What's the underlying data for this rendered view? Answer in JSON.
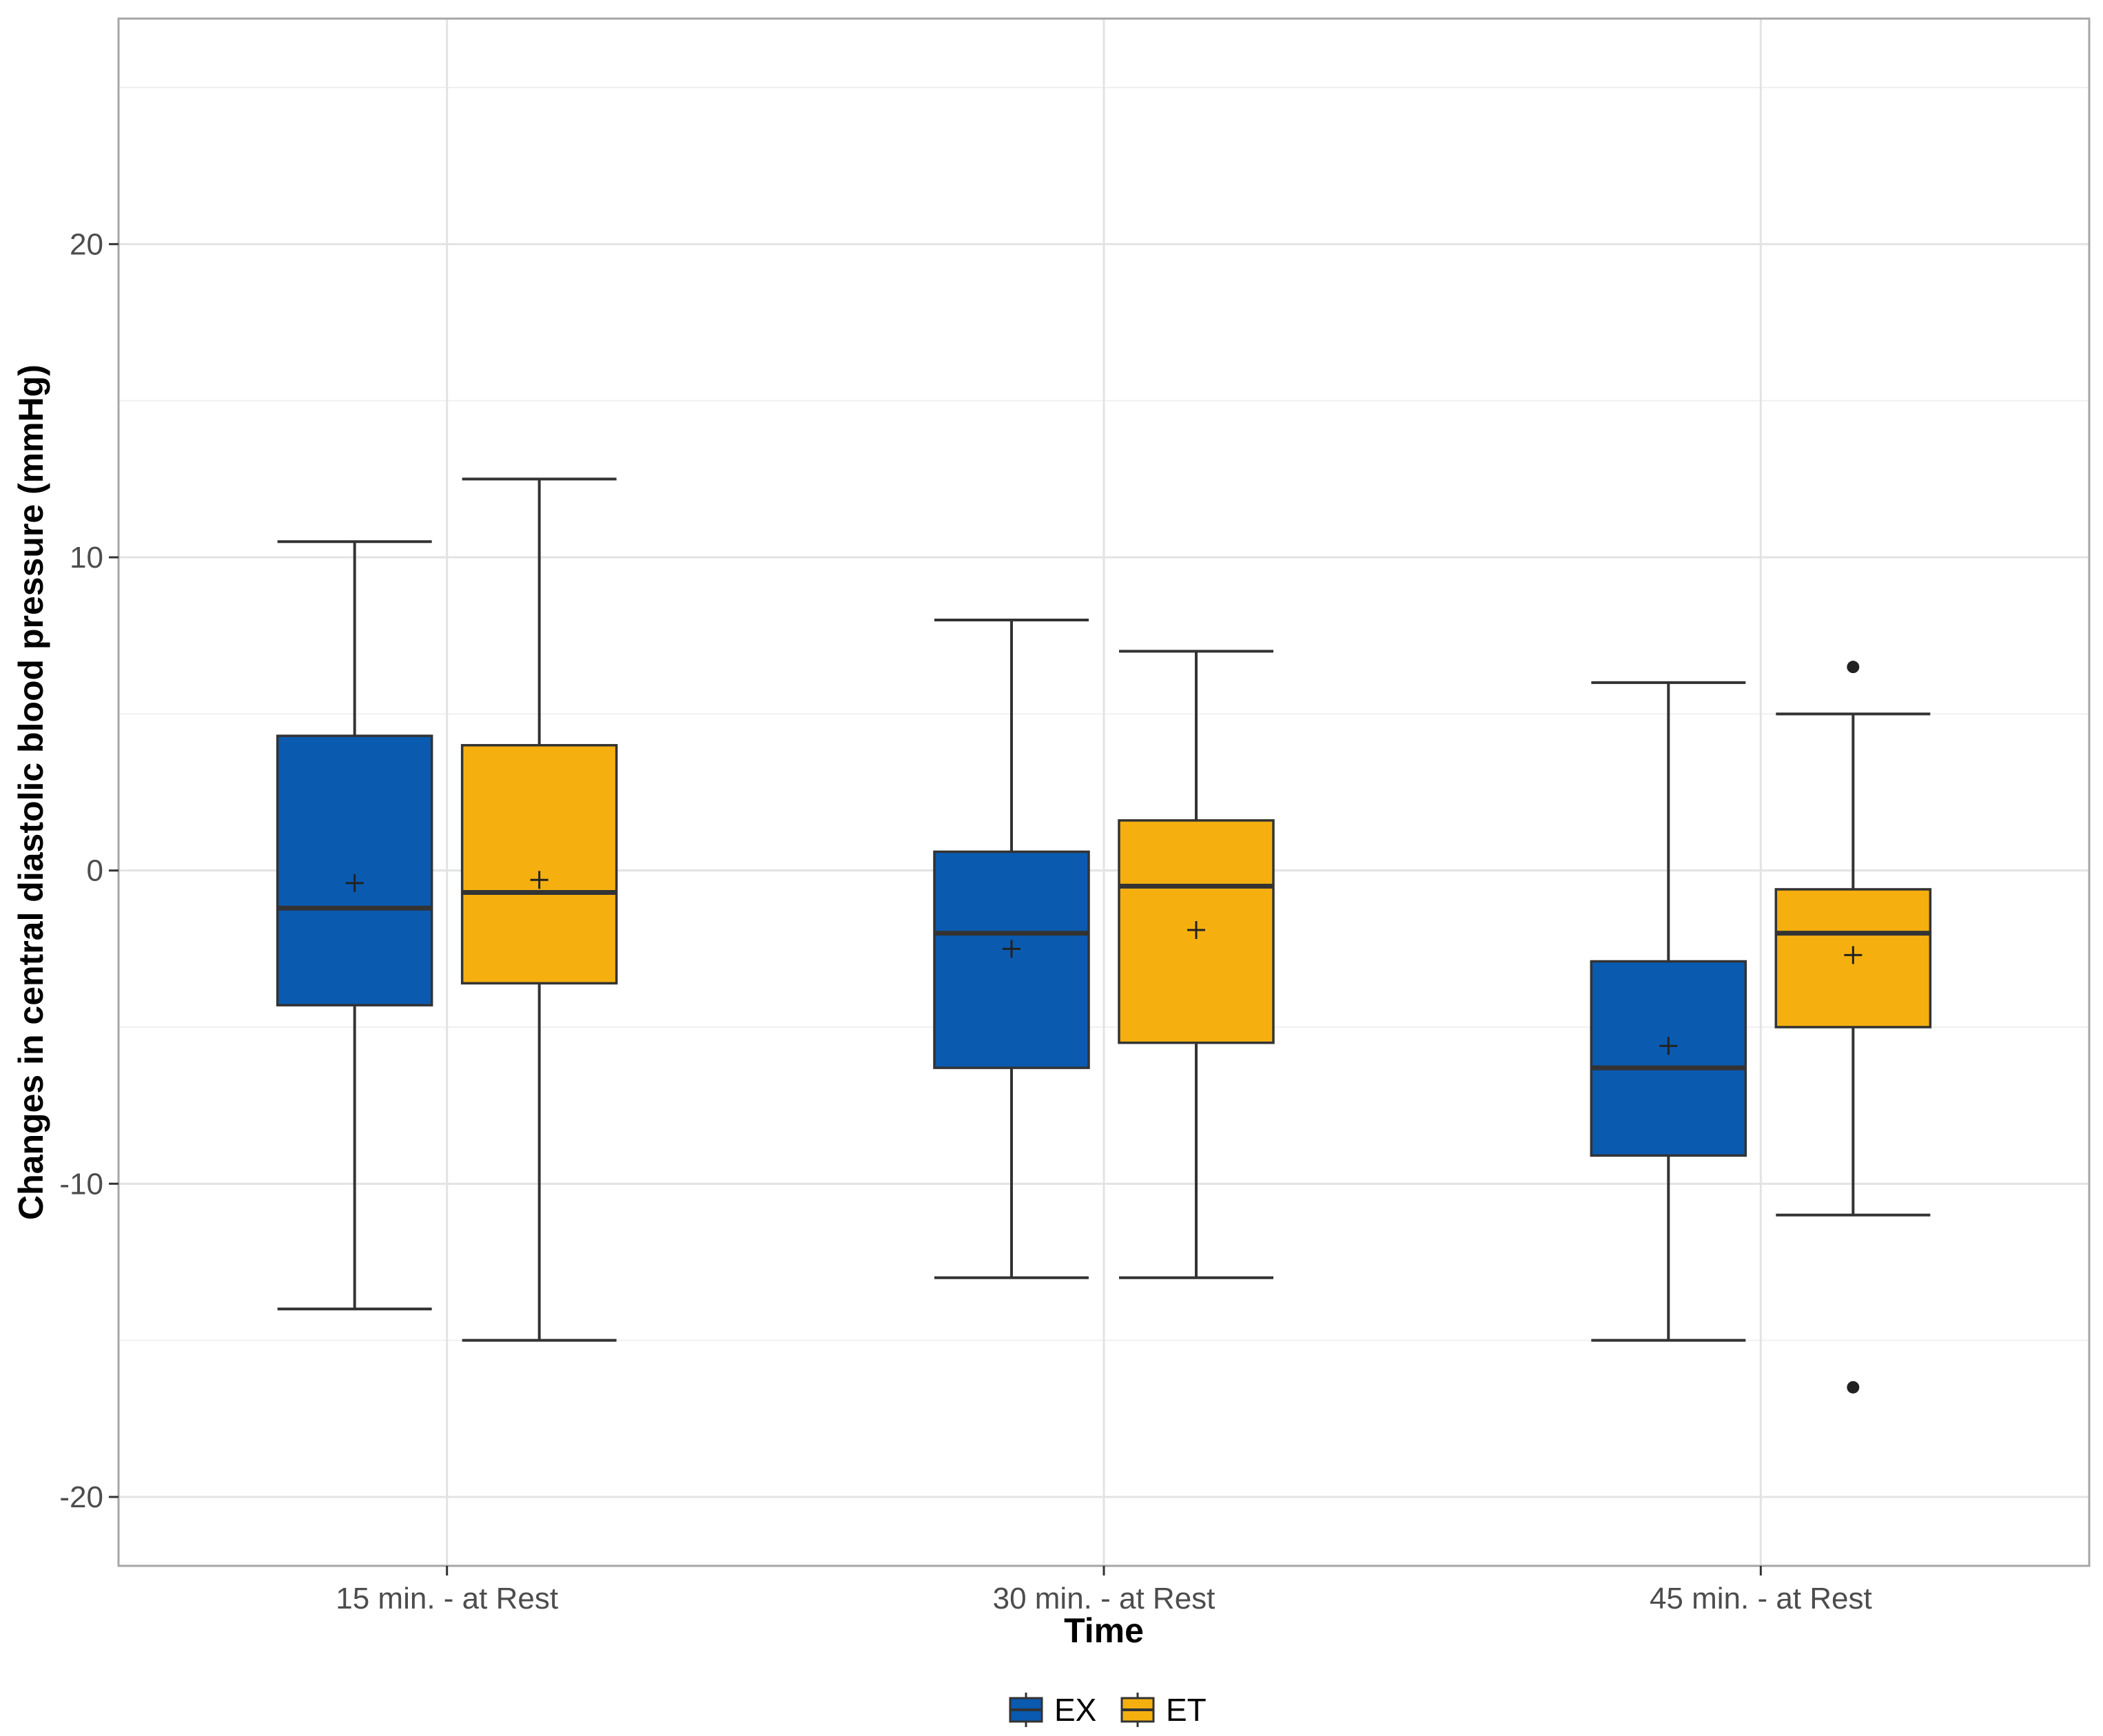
{
  "chart_data": {
    "type": "box",
    "xlabel": "Time",
    "ylabel": "Changes in central diastolic blood pressure (mmHg)",
    "categories": [
      "15 min. - at Rest",
      "30 min. - at Rest",
      "45 min. - at Rest"
    ],
    "ylim": [
      -22.2,
      27.2
    ],
    "yticks": [
      -20,
      -10,
      0,
      10,
      20
    ],
    "ytick_labels": [
      "-20",
      "-10",
      "0",
      "10",
      "20"
    ],
    "grid": true,
    "legend_position": "bottom",
    "series": [
      {
        "name": "EX",
        "color": "#0a5ab0",
        "boxes": [
          {
            "whisker_low": -14,
            "q1": -4.3,
            "median": -1.2,
            "q3": 4.3,
            "whisker_high": 10.5,
            "mean": -0.4,
            "outliers": []
          },
          {
            "whisker_low": -13,
            "q1": -6.3,
            "median": -2,
            "q3": 0.6,
            "whisker_high": 8,
            "mean": -2.5,
            "outliers": []
          },
          {
            "whisker_low": -15,
            "q1": -9.1,
            "median": -6.3,
            "q3": -2.9,
            "whisker_high": 6,
            "mean": -5.6,
            "outliers": []
          }
        ]
      },
      {
        "name": "ET",
        "color": "#f5b010",
        "boxes": [
          {
            "whisker_low": -15,
            "q1": -3.6,
            "median": -0.7,
            "q3": 4,
            "whisker_high": 12.5,
            "mean": -0.3,
            "outliers": []
          },
          {
            "whisker_low": -13,
            "q1": -5.5,
            "median": -0.5,
            "q3": 1.6,
            "whisker_high": 7,
            "mean": -1.9,
            "outliers": []
          },
          {
            "whisker_low": -11,
            "q1": -5,
            "median": -2,
            "q3": -0.6,
            "whisker_high": 5,
            "mean": -2.7,
            "outliers": [
              6.5,
              -16.5
            ]
          }
        ]
      }
    ]
  }
}
